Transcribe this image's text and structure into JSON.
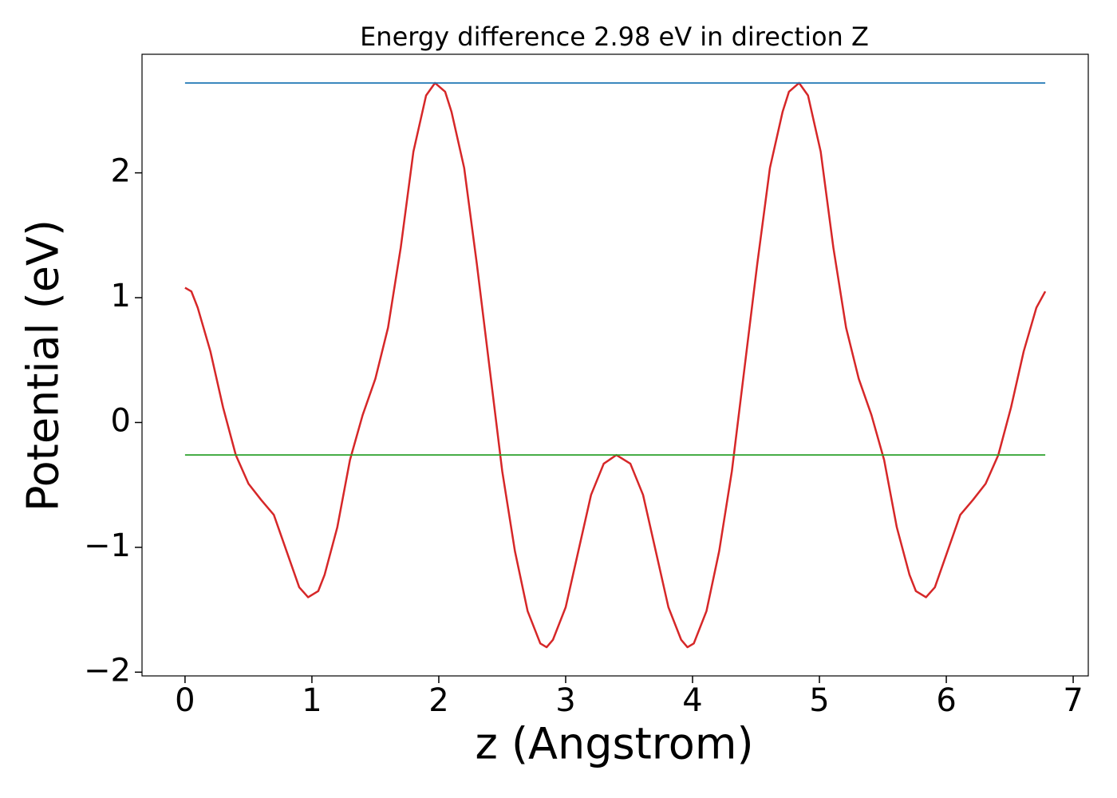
{
  "chart_data": {
    "type": "line",
    "title": "Energy difference 2.98 eV in direction Z",
    "xlabel": "z (Angstrom)",
    "ylabel": "Potential (eV)",
    "xlim": [
      -0.339,
      7.119
    ],
    "ylim": [
      -2.03,
      2.95
    ],
    "xticks": [
      0,
      1,
      2,
      3,
      4,
      5,
      6,
      7
    ],
    "yticks": [
      {
        "value": -2,
        "label": "−2"
      },
      {
        "value": -1,
        "label": "−1"
      },
      0,
      1,
      2
    ],
    "grid": false,
    "series": [
      {
        "color": "#d62728",
        "x": [
          0,
          0.05,
          0.1,
          0.2,
          0.3,
          0.4,
          0.5,
          0.6,
          0.7,
          0.8,
          0.9,
          0.97,
          1.05,
          1.1,
          1.2,
          1.3,
          1.4,
          1.5,
          1.6,
          1.7,
          1.8,
          1.9,
          1.97,
          2.05,
          2.1,
          2.2,
          2.3,
          2.4,
          2.5,
          2.6,
          2.7,
          2.8,
          2.85,
          2.9,
          3.0,
          3.1,
          3.2,
          3.3,
          3.4,
          3.51,
          3.61,
          3.71,
          3.81,
          3.91,
          3.96,
          4.01,
          4.11,
          4.21,
          4.31,
          4.41,
          4.51,
          4.61,
          4.71,
          4.76,
          4.84,
          4.91,
          5.01,
          5.11,
          5.21,
          5.31,
          5.41,
          5.51,
          5.61,
          5.71,
          5.76,
          5.84,
          5.91,
          6.01,
          6.11,
          6.21,
          6.31,
          6.41,
          6.51,
          6.61,
          6.71,
          6.78
        ],
        "values": [
          1.08,
          1.05,
          0.92,
          0.57,
          0.12,
          -0.26,
          -0.49,
          -0.62,
          -0.74,
          -1.03,
          -1.32,
          -1.4,
          -1.35,
          -1.22,
          -0.84,
          -0.3,
          0.06,
          0.35,
          0.76,
          1.4,
          2.17,
          2.62,
          2.72,
          2.65,
          2.49,
          2.04,
          1.27,
          0.44,
          -0.39,
          -1.03,
          -1.51,
          -1.77,
          -1.8,
          -1.74,
          -1.48,
          -1.03,
          -0.58,
          -0.33,
          -0.26,
          -0.33,
          -0.58,
          -1.03,
          -1.48,
          -1.74,
          -1.8,
          -1.77,
          -1.51,
          -1.03,
          -0.39,
          0.44,
          1.27,
          2.04,
          2.49,
          2.65,
          2.72,
          2.62,
          2.17,
          1.4,
          0.76,
          0.35,
          0.06,
          -0.3,
          -0.84,
          -1.22,
          -1.35,
          -1.4,
          -1.32,
          -1.03,
          -0.74,
          -0.62,
          -0.49,
          -0.26,
          0.12,
          0.57,
          0.92,
          1.05
        ]
      },
      {
        "color": "#1f77b4",
        "x": [
          0,
          6.78
        ],
        "values": [
          2.72,
          2.72
        ]
      },
      {
        "color": "#2ca02c",
        "x": [
          0,
          6.78
        ],
        "values": [
          -0.26,
          -0.26
        ]
      }
    ]
  }
}
